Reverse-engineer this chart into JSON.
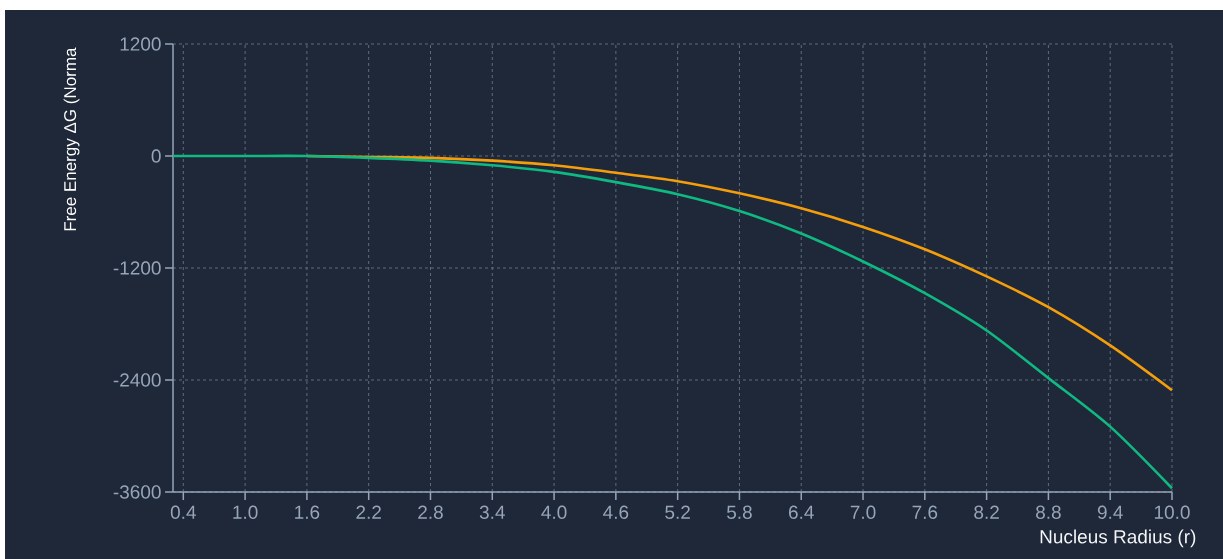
{
  "chart_data": {
    "type": "line",
    "ylabel": "Free Energy ΔG (Norma",
    "xlabel": "Nucleus Radius (r)",
    "x": [
      0.3,
      1.0,
      1.6,
      2.2,
      2.8,
      3.4,
      4.0,
      4.6,
      5.2,
      5.8,
      6.4,
      7.0,
      7.6,
      8.2,
      8.8,
      9.4,
      10.0
    ],
    "series": [
      {
        "color": "#f59e0b",
        "values": [
          null,
          null,
          0,
          -10,
          -20,
          -50,
          -100,
          -180,
          -270,
          -400,
          -560,
          -760,
          -1000,
          -1290,
          -1620,
          -2030,
          -2510
        ]
      },
      {
        "color": "#10b981",
        "values": [
          0,
          0,
          0,
          -20,
          -50,
          -100,
          -170,
          -280,
          -410,
          -590,
          -830,
          -1130,
          -1470,
          -1870,
          -2380,
          -2900,
          -3560
        ]
      }
    ],
    "xlim": [
      0.3,
      10.0
    ],
    "ylim": [
      -3600,
      1200
    ],
    "xticks": [
      0.4,
      {
        "value": 1.0,
        "label": "1.0"
      },
      1.6,
      2.2,
      2.8,
      3.4,
      {
        "value": 4.0,
        "label": "4.0"
      },
      4.6,
      5.2,
      5.8,
      6.4,
      {
        "value": 7.0,
        "label": "7.0"
      },
      7.6,
      8.2,
      8.8,
      9.4,
      {
        "value": 10.0,
        "label": "10.0"
      }
    ],
    "yticks": [
      1200,
      0,
      -1200,
      -2400,
      -3600
    ],
    "grid": true,
    "line_style": "solid",
    "marker": "none"
  }
}
